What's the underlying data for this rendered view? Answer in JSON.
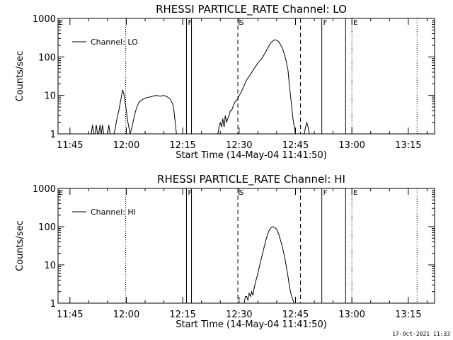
{
  "timestamp": "17-Oct-2021 11:33",
  "chart_data": [
    {
      "type": "line",
      "title": "RHESSI PARTICLE_RATE Channel: LO",
      "xlabel": "Start Time (14-May-04 11:41:50)",
      "ylabel": "Counts/sec",
      "y_scale": "log",
      "ylim": [
        1,
        1000
      ],
      "y_ticks": [
        1,
        10,
        100,
        1000
      ],
      "y_tick_labels": [
        "1",
        "10",
        "100",
        "1000"
      ],
      "xlim": [
        "11:41:50",
        "13:22:00"
      ],
      "x_ticks": [
        "11:45",
        "12:00",
        "12:15",
        "12:30",
        "12:45",
        "13:00",
        "13:15"
      ],
      "legend": {
        "placement": "top-left",
        "entries": [
          "Channel: LO"
        ]
      },
      "series": [
        {
          "name": "Channel: LO",
          "x": [
            "11:50:40",
            "11:51:00",
            "11:51:20",
            "11:51:40",
            "11:52:00",
            "11:52:20",
            "11:52:40",
            "11:53:00",
            "11:53:20",
            "11:53:40",
            "11:54:00",
            "11:54:20",
            "11:54:40",
            "11:55:00",
            "11:55:20",
            "11:55:40",
            "11:56:00",
            "11:56:20",
            "11:56:40",
            "11:57:00",
            "11:57:20",
            "11:57:40",
            "11:58:00",
            "11:58:20",
            "11:58:40",
            "11:59:00",
            "11:59:20",
            "11:59:40",
            "12:00:00",
            "12:00:20",
            "12:00:40",
            "12:01:00",
            "12:01:20",
            "12:01:40",
            "12:02:00",
            "12:02:20",
            "12:02:40",
            "12:03:00",
            "12:03:20",
            "12:03:40",
            "12:04:00",
            "12:04:30",
            "12:05:00",
            "12:06:00",
            "12:07:00",
            "12:08:00",
            "12:09:00",
            "12:10:00",
            "12:11:00",
            "12:11:40",
            "12:12:20",
            "12:12:40",
            "12:13:00",
            "12:13:20"
          ],
          "y": [
            1,
            1.7,
            1,
            1,
            1.7,
            1,
            1,
            1.7,
            1,
            1.7,
            1,
            1,
            1,
            1,
            1.7,
            1,
            1,
            1,
            1,
            1.3,
            2,
            3,
            4,
            6,
            9,
            14,
            11,
            7,
            4,
            2.2,
            1.5,
            1,
            1.3,
            1.8,
            2.5,
            3.5,
            4.5,
            5.5,
            6.5,
            7,
            7.5,
            8,
            8.5,
            9,
            9.5,
            10,
            9.5,
            10,
            9,
            8,
            6,
            4,
            2,
            1
          ]
        },
        {
          "name": "",
          "x": [
            "12:24:20",
            "12:24:40",
            "12:25:00",
            "12:25:20",
            "12:25:40",
            "12:26:00",
            "12:26:20",
            "12:26:40",
            "12:27:00",
            "12:27:20",
            "12:27:40",
            "12:28:00",
            "12:28:20",
            "12:28:40",
            "12:29:00",
            "12:29:20",
            "12:29:40",
            "12:30:00",
            "12:30:20",
            "12:30:40",
            "12:31:00",
            "12:31:20",
            "12:32:00",
            "12:33:00",
            "12:34:00",
            "12:35:00",
            "12:36:00",
            "12:37:00",
            "12:38:00",
            "12:38:30",
            "12:39:00",
            "12:39:30",
            "12:40:00",
            "12:40:30",
            "12:41:00",
            "12:41:30",
            "12:42:00",
            "12:42:30",
            "12:43:00",
            "12:43:20",
            "12:43:40",
            "12:44:00",
            "12:44:20",
            "12:44:40",
            "12:45:00",
            "12:45:20",
            "12:45:40",
            "12:46:00",
            "12:46:20",
            "12:46:40",
            "12:47:00",
            "12:47:20",
            "12:47:40",
            "12:48:00",
            "12:48:20",
            "12:48:40"
          ],
          "y": [
            1,
            1.5,
            2,
            1.5,
            2.5,
            1.5,
            3,
            2,
            2.5,
            3,
            4,
            4,
            5,
            6,
            7,
            7.5,
            8,
            10,
            11,
            13,
            15,
            18,
            25,
            35,
            50,
            70,
            90,
            130,
            200,
            240,
            260,
            280,
            270,
            250,
            210,
            170,
            120,
            80,
            45,
            20,
            10,
            5,
            2.5,
            1.5,
            1,
            1,
            1,
            1,
            1,
            1,
            1,
            1,
            1.5,
            2,
            1.5,
            1
          ]
        }
      ]
    },
    {
      "type": "line",
      "title": "RHESSI PARTICLE_RATE Channel: HI",
      "xlabel": "Start Time (14-May-04 11:41:50)",
      "ylabel": "Counts/sec",
      "y_scale": "log",
      "ylim": [
        1,
        1000
      ],
      "y_ticks": [
        1,
        10,
        100,
        1000
      ],
      "y_tick_labels": [
        "1",
        "10",
        "100",
        "1000"
      ],
      "xlim": [
        "11:41:50",
        "13:22:00"
      ],
      "x_ticks": [
        "11:45",
        "12:00",
        "12:15",
        "12:30",
        "12:45",
        "13:00",
        "13:15"
      ],
      "legend": {
        "placement": "top-left",
        "entries": [
          "Channel: HI"
        ]
      },
      "series": [
        {
          "name": "Channel: HI",
          "x": [
            "12:31:20",
            "12:31:40",
            "12:32:00",
            "12:32:20",
            "12:32:40",
            "12:33:00",
            "12:33:20",
            "12:33:40",
            "12:34:00",
            "12:34:30",
            "12:35:00",
            "12:35:30",
            "12:36:00",
            "12:36:30",
            "12:37:00",
            "12:37:30",
            "12:38:00",
            "12:38:30",
            "12:39:00",
            "12:39:30",
            "12:40:00",
            "12:40:30",
            "12:41:00",
            "12:41:30",
            "12:42:00",
            "12:42:30",
            "12:43:00",
            "12:43:20",
            "12:43:40",
            "12:44:00",
            "12:44:20",
            "12:44:40"
          ],
          "y": [
            1,
            1.5,
            1.5,
            1.2,
            1.8,
            1.5,
            2,
            1.6,
            2.5,
            4,
            6,
            10,
            16,
            25,
            40,
            60,
            80,
            95,
            100,
            95,
            85,
            65,
            45,
            30,
            18,
            10,
            5,
            3,
            2,
            1.5,
            1.2,
            1
          ]
        }
      ]
    }
  ],
  "markers": [
    {
      "label": "F",
      "time": "12:16:00",
      "style": "solid"
    },
    {
      "label": "",
      "time": "12:17:20",
      "style": "solid"
    },
    {
      "label": "S",
      "time": "12:29:40",
      "style": "dashed"
    },
    {
      "label": "",
      "time": "12:46:20",
      "style": "dashed"
    },
    {
      "label": "F",
      "time": "12:52:00",
      "style": "solid"
    },
    {
      "label": "",
      "time": "12:58:20",
      "style": "solid"
    },
    {
      "label": "E",
      "time": "13:00:00",
      "style": "dotted"
    },
    {
      "label": "",
      "time": "11:59:50",
      "style": "dotted"
    },
    {
      "label": "",
      "time": "13:17:20",
      "style": "dotted"
    }
  ],
  "left_edge_label": "E"
}
